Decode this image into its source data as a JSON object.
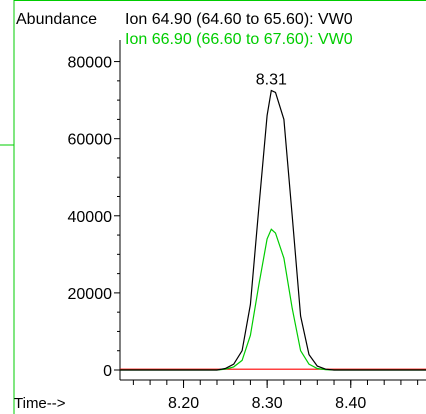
{
  "chart_data": {
    "type": "line",
    "ylabel": "Abundance",
    "xlabel": "Time-->",
    "xlim": [
      8.124,
      8.49
    ],
    "ylim": [
      0,
      83000
    ],
    "x_ticks": [
      "8.20",
      "8.30",
      "8.40"
    ],
    "y_ticks": [
      "0",
      "20000",
      "40000",
      "60000",
      "80000"
    ],
    "x_tick_values": [
      8.2,
      8.3,
      8.4
    ],
    "y_tick_values": [
      0,
      20000,
      40000,
      60000,
      80000
    ],
    "legend_placement": "top",
    "series": [
      {
        "name": "Ion  64.90 (64.60 to 65.60): VW0",
        "color": "#000000",
        "x": [
          8.124,
          8.24,
          8.25,
          8.26,
          8.27,
          8.28,
          8.29,
          8.3,
          8.305,
          8.31,
          8.32,
          8.33,
          8.34,
          8.35,
          8.36,
          8.37,
          8.38,
          8.49
        ],
        "y": [
          0,
          0,
          400,
          1500,
          5000,
          17000,
          42000,
          66000,
          72500,
          72000,
          65000,
          40000,
          14000,
          4000,
          1000,
          200,
          0,
          0
        ]
      },
      {
        "name": "Ion  66.90 (66.60 to 67.60): VW0",
        "color": "#00cc00",
        "x": [
          8.124,
          8.24,
          8.25,
          8.26,
          8.27,
          8.28,
          8.29,
          8.3,
          8.305,
          8.31,
          8.32,
          8.33,
          8.34,
          8.35,
          8.36,
          8.37,
          8.38,
          8.49
        ],
        "y": [
          0,
          0,
          200,
          800,
          2500,
          9000,
          22000,
          34000,
          36500,
          35500,
          29000,
          16000,
          5000,
          1500,
          400,
          100,
          0,
          0
        ]
      },
      {
        "name": "",
        "color": "#ff0000",
        "x": [
          8.124,
          8.49
        ],
        "y": [
          200,
          200
        ]
      }
    ],
    "annotations": [
      {
        "text": "8.31",
        "x": 8.305,
        "y": 72500
      }
    ]
  }
}
